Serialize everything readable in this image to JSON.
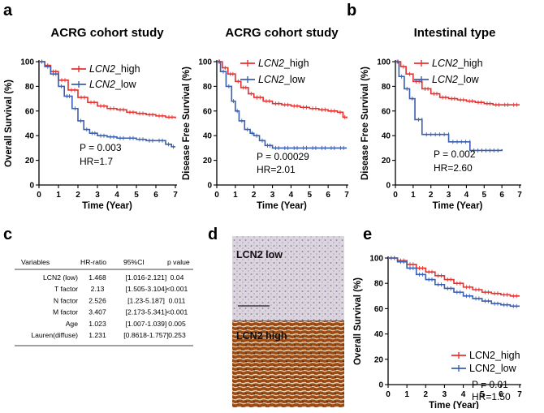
{
  "colors": {
    "high": "#e8312f",
    "low": "#3a5fb0",
    "axis": "#000000"
  },
  "panel_labels": {
    "a": "a",
    "b": "b",
    "c": "c",
    "d": "d",
    "e": "e"
  },
  "chart_data": [
    {
      "type": "line",
      "id": "a1",
      "title": "ACRG cohort study",
      "xlabel": "Time (Year)",
      "ylabel": "Overall Survival (%)",
      "xlim": [
        0,
        7
      ],
      "ylim": [
        0,
        100
      ],
      "xticks": [
        "0",
        "1",
        "2",
        "3",
        "4",
        "5",
        "6",
        "7"
      ],
      "yticks": [
        "0",
        "20",
        "40",
        "60",
        "80",
        "100"
      ],
      "series": [
        {
          "name": "LCN2_high",
          "legend_italic": "LCN2",
          "legend_rest": "_high",
          "color_key": "high",
          "x": [
            0,
            0.3,
            0.6,
            1,
            1.5,
            2,
            2.5,
            3,
            3.5,
            4,
            4.5,
            5,
            5.5,
            6,
            6.5,
            7
          ],
          "y": [
            100,
            97,
            92,
            85,
            77,
            71,
            67,
            64,
            62,
            61,
            59,
            58,
            57,
            56,
            55,
            54
          ]
        },
        {
          "name": "LCN2_low",
          "legend_italic": "LCN2",
          "legend_rest": "_low",
          "color_key": "low",
          "x": [
            0,
            0.3,
            0.6,
            1,
            1.3,
            1.7,
            2,
            2.3,
            2.6,
            3,
            3.5,
            4,
            4.5,
            5,
            5.5,
            6,
            6.5,
            6.8,
            7
          ],
          "y": [
            100,
            96,
            90,
            80,
            72,
            62,
            52,
            45,
            42,
            40,
            39,
            38,
            38,
            37,
            36,
            36,
            33,
            31,
            31
          ]
        }
      ],
      "annotations": [
        "P = 0.003",
        "HR=1.7"
      ]
    },
    {
      "type": "line",
      "id": "a2",
      "title": "ACRG cohort study",
      "xlabel": "Time (Year)",
      "ylabel": "Disease Free Survival (%)",
      "xlim": [
        0,
        7
      ],
      "ylim": [
        0,
        100
      ],
      "xticks": [
        "0",
        "1",
        "2",
        "3",
        "4",
        "5",
        "6",
        "7"
      ],
      "yticks": [
        "0",
        "20",
        "40",
        "60",
        "80",
        "100"
      ],
      "series": [
        {
          "name": "LCN2_high",
          "legend_italic": "LCN2",
          "legend_rest": "_high",
          "color_key": "high",
          "x": [
            0,
            0.3,
            0.6,
            1,
            1.3,
            1.7,
            2,
            2.5,
            3,
            3.5,
            4,
            4.5,
            5,
            5.5,
            6,
            6.5,
            6.8,
            7
          ],
          "y": [
            100,
            95,
            90,
            84,
            79,
            74,
            71,
            68,
            66,
            65,
            64,
            63,
            62,
            61,
            60,
            59,
            55,
            54
          ]
        },
        {
          "name": "LCN2_low",
          "legend_italic": "LCN2",
          "legend_rest": "_low",
          "color_key": "low",
          "x": [
            0,
            0.2,
            0.5,
            0.8,
            1,
            1.2,
            1.5,
            1.8,
            2,
            2.3,
            2.6,
            3,
            3.5,
            4,
            4.5,
            5,
            5.5,
            6,
            6.5,
            7
          ],
          "y": [
            100,
            92,
            80,
            68,
            60,
            52,
            45,
            42,
            40,
            36,
            32,
            30,
            30,
            30,
            30,
            30,
            30,
            30,
            30,
            30
          ]
        }
      ],
      "annotations": [
        "P = 0.00029",
        "HR=2.01"
      ]
    },
    {
      "type": "line",
      "id": "b",
      "title": "Intestinal type",
      "xlabel": "Time (Year)",
      "ylabel": "Disease Free Survival (%)",
      "xlim": [
        0,
        7
      ],
      "ylim": [
        0,
        100
      ],
      "xticks": [
        "0",
        "1",
        "2",
        "3",
        "4",
        "5",
        "6",
        "7"
      ],
      "yticks": [
        "0",
        "20",
        "40",
        "60",
        "80",
        "100"
      ],
      "series": [
        {
          "name": "LCN2_high",
          "legend_italic": "LCN2",
          "legend_rest": "_high",
          "color_key": "high",
          "x": [
            0,
            0.3,
            0.6,
            1,
            1.5,
            2,
            2.5,
            3,
            3.5,
            4,
            4.5,
            5,
            5.5,
            6,
            6.5,
            7
          ],
          "y": [
            100,
            96,
            90,
            84,
            78,
            74,
            71,
            70,
            69,
            68,
            67,
            66,
            65,
            65,
            65,
            65
          ]
        },
        {
          "name": "LCN2_low",
          "legend_italic": "LCN2",
          "legend_rest": "_low",
          "color_key": "low",
          "x": [
            0,
            0.2,
            0.5,
            0.8,
            1.1,
            1.1,
            1.5,
            1.5,
            3,
            3,
            4.2,
            4.2,
            6
          ],
          "y": [
            100,
            88,
            78,
            70,
            60,
            53,
            53,
            41,
            41,
            35,
            35,
            28,
            29
          ]
        }
      ],
      "annotations": [
        "P = 0.002",
        "HR=2.60"
      ]
    },
    {
      "type": "line",
      "id": "e",
      "title": "",
      "xlabel": "Time (Year)",
      "ylabel": "Overall Survival (%)",
      "xlim": [
        0,
        7
      ],
      "ylim": [
        0,
        100
      ],
      "xticks": [
        "0",
        "1",
        "2",
        "3",
        "4",
        "5",
        "6",
        "7"
      ],
      "yticks": [
        "0",
        "20",
        "40",
        "60",
        "80",
        "100"
      ],
      "series": [
        {
          "name": "LCN2_high",
          "legend_italic": "",
          "legend_rest": "LCN2_high",
          "color_key": "high",
          "x": [
            0,
            0.5,
            1,
            1.5,
            2,
            2.5,
            3,
            3.5,
            4,
            4.5,
            5,
            5.5,
            6,
            6.5,
            7
          ],
          "y": [
            100,
            98,
            95,
            92,
            89,
            86,
            83,
            80,
            77,
            75,
            73,
            72,
            71,
            70,
            70
          ]
        },
        {
          "name": "LCN2_low",
          "legend_italic": "",
          "legend_rest": "LCN2_low",
          "color_key": "low",
          "x": [
            0,
            0.5,
            1,
            1.5,
            2,
            2.5,
            3,
            3.5,
            4,
            4.5,
            5,
            5.5,
            6,
            6.5,
            7
          ],
          "y": [
            100,
            97,
            92,
            87,
            83,
            79,
            76,
            73,
            70,
            68,
            66,
            64,
            63,
            62,
            62
          ]
        }
      ],
      "annotations": [
        "P = 0.01",
        "HR=1.50"
      ]
    }
  ],
  "table": {
    "headers": [
      "Variables",
      "HR-ratio",
      "95%CI",
      "p value"
    ],
    "rows": [
      [
        "LCN2 (low)",
        "1.468",
        "[1.016-2.121]",
        "0.04"
      ],
      [
        "T factor",
        "2.13",
        "[1.505-3.104]",
        "<0.001"
      ],
      [
        "N factor",
        "2.526",
        "[1.23-5.187]",
        "0.011"
      ],
      [
        "M factor",
        "3.407",
        "[2.173-5.341]",
        "<0.001"
      ],
      [
        "Age",
        "1.023",
        "[1.007-1.039]",
        "0.005"
      ],
      [
        "Lauren(diffuse)",
        "1.231",
        "[0.8618-1.757]",
        "0.253"
      ]
    ]
  },
  "ihc": {
    "top_label": "LCN2 low",
    "bottom_label": "LCN2 high"
  }
}
